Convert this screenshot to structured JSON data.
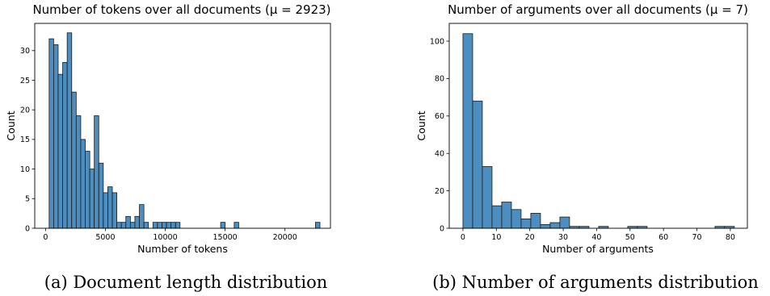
{
  "chart_data": [
    {
      "type": "bar",
      "title": "Number of tokens over all documents (μ = 2923)",
      "xlabel": "Number of tokens",
      "ylabel": "Count",
      "caption": "(a) Document length distribution",
      "xlim": [
        -900,
        23800
      ],
      "ylim": [
        0,
        34.6
      ],
      "xticks": [
        0,
        5000,
        10000,
        15000,
        20000
      ],
      "yticks": [
        0,
        5,
        10,
        15,
        20,
        25,
        30
      ],
      "grid": false,
      "bars": [
        {
          "x0": 302,
          "x1": 679,
          "count": 32
        },
        {
          "x0": 679,
          "x1": 1056,
          "count": 31
        },
        {
          "x0": 1056,
          "x1": 1433,
          "count": 26
        },
        {
          "x0": 1433,
          "x1": 1810,
          "count": 28
        },
        {
          "x0": 1810,
          "x1": 2187,
          "count": 33
        },
        {
          "x0": 2187,
          "x1": 2564,
          "count": 23
        },
        {
          "x0": 2564,
          "x1": 2941,
          "count": 19
        },
        {
          "x0": 2941,
          "x1": 3318,
          "count": 15
        },
        {
          "x0": 3318,
          "x1": 3695,
          "count": 13
        },
        {
          "x0": 3695,
          "x1": 4072,
          "count": 10
        },
        {
          "x0": 4072,
          "x1": 4449,
          "count": 19
        },
        {
          "x0": 4449,
          "x1": 4826,
          "count": 11
        },
        {
          "x0": 4826,
          "x1": 5203,
          "count": 6
        },
        {
          "x0": 5203,
          "x1": 5580,
          "count": 7
        },
        {
          "x0": 5580,
          "x1": 5957,
          "count": 6
        },
        {
          "x0": 5957,
          "x1": 6334,
          "count": 1
        },
        {
          "x0": 6334,
          "x1": 6711,
          "count": 1
        },
        {
          "x0": 6711,
          "x1": 7088,
          "count": 2
        },
        {
          "x0": 7088,
          "x1": 7465,
          "count": 1
        },
        {
          "x0": 7465,
          "x1": 7842,
          "count": 2
        },
        {
          "x0": 7842,
          "x1": 8219,
          "count": 4
        },
        {
          "x0": 8219,
          "x1": 8596,
          "count": 1
        },
        {
          "x0": 8973,
          "x1": 9350,
          "count": 1
        },
        {
          "x0": 9350,
          "x1": 9727,
          "count": 1
        },
        {
          "x0": 9727,
          "x1": 10104,
          "count": 1
        },
        {
          "x0": 10104,
          "x1": 10481,
          "count": 1
        },
        {
          "x0": 10481,
          "x1": 10858,
          "count": 1
        },
        {
          "x0": 10858,
          "x1": 11235,
          "count": 1
        },
        {
          "x0": 14628,
          "x1": 15005,
          "count": 1
        },
        {
          "x0": 15759,
          "x1": 16136,
          "count": 1
        },
        {
          "x0": 22545,
          "x1": 22922,
          "count": 1
        }
      ]
    },
    {
      "type": "bar",
      "title": "Number of arguments over all documents (μ = 7)",
      "xlabel": "Number of arguments",
      "ylabel": "Count",
      "caption": "(b) Number of arguments distribution",
      "xlim": [
        -4.1,
        85.1
      ],
      "ylim": [
        0,
        109.5
      ],
      "xticks": [
        0,
        10,
        20,
        30,
        40,
        50,
        60,
        70,
        80
      ],
      "yticks": [
        0,
        20,
        40,
        60,
        80,
        100
      ],
      "grid": false,
      "bars": [
        {
          "x0": 0,
          "x1": 2.9,
          "count": 104
        },
        {
          "x0": 2.9,
          "x1": 5.8,
          "count": 68
        },
        {
          "x0": 5.8,
          "x1": 8.7,
          "count": 33
        },
        {
          "x0": 8.7,
          "x1": 11.6,
          "count": 12
        },
        {
          "x0": 11.6,
          "x1": 14.5,
          "count": 14
        },
        {
          "x0": 14.5,
          "x1": 17.4,
          "count": 10
        },
        {
          "x0": 17.4,
          "x1": 20.3,
          "count": 5
        },
        {
          "x0": 20.3,
          "x1": 23.2,
          "count": 8
        },
        {
          "x0": 23.2,
          "x1": 26.1,
          "count": 2
        },
        {
          "x0": 26.1,
          "x1": 29.0,
          "count": 3
        },
        {
          "x0": 29.0,
          "x1": 31.9,
          "count": 6
        },
        {
          "x0": 31.9,
          "x1": 34.8,
          "count": 1
        },
        {
          "x0": 34.8,
          "x1": 37.7,
          "count": 1
        },
        {
          "x0": 40.6,
          "x1": 43.5,
          "count": 1
        },
        {
          "x0": 49.3,
          "x1": 52.2,
          "count": 1
        },
        {
          "x0": 52.2,
          "x1": 55.1,
          "count": 1
        },
        {
          "x0": 75.4,
          "x1": 78.3,
          "count": 1
        },
        {
          "x0": 78.3,
          "x1": 81.2,
          "count": 1
        }
      ]
    }
  ]
}
